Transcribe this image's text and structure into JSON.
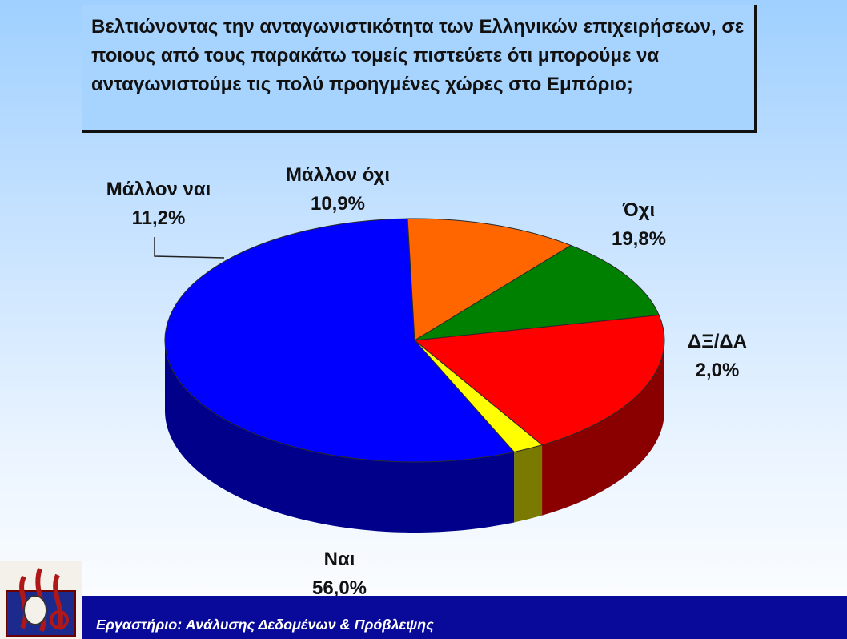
{
  "question": "Βελτιώνοντας την ανταγωνιστικότητα των Ελληνικών επιχειρήσεων, σε ποιους από τους παρακάτω τομείς πιστεύετε ότι μπορούμε να ανταγωνιστούμε τις πολύ προηγμένες χώρες στο Εμπόριο;",
  "footer": "Εργαστήριο: Ανάλυσης Δεδομένων & Πρόβλεψης",
  "logo": {
    "icon": "university-emblem-icon"
  },
  "chart_data": {
    "type": "pie",
    "style": "3d",
    "slices": [
      {
        "name": "Όχι",
        "label": "19,8%",
        "value": 19.8,
        "color": "#ff0000",
        "side_color": "#8a0000"
      },
      {
        "name": "ΔΞ/ΔΑ",
        "label": "2,0%",
        "value": 2.0,
        "color": "#ffff00",
        "side_color": "#7a7a00"
      },
      {
        "name": "Ναι",
        "label": "56,0%",
        "value": 56.0,
        "color": "#0000ff",
        "side_color": "#00008a"
      },
      {
        "name": "Μάλλον ναι",
        "label": "11,2%",
        "value": 11.2,
        "color": "#ff6600",
        "side_color": "#8a3300"
      },
      {
        "name": "Μάλλον όχι",
        "label": "10,9%",
        "value": 10.9,
        "color": "#008000",
        "side_color": "#004000"
      }
    ],
    "legend": "none",
    "data_labels": "outside"
  }
}
